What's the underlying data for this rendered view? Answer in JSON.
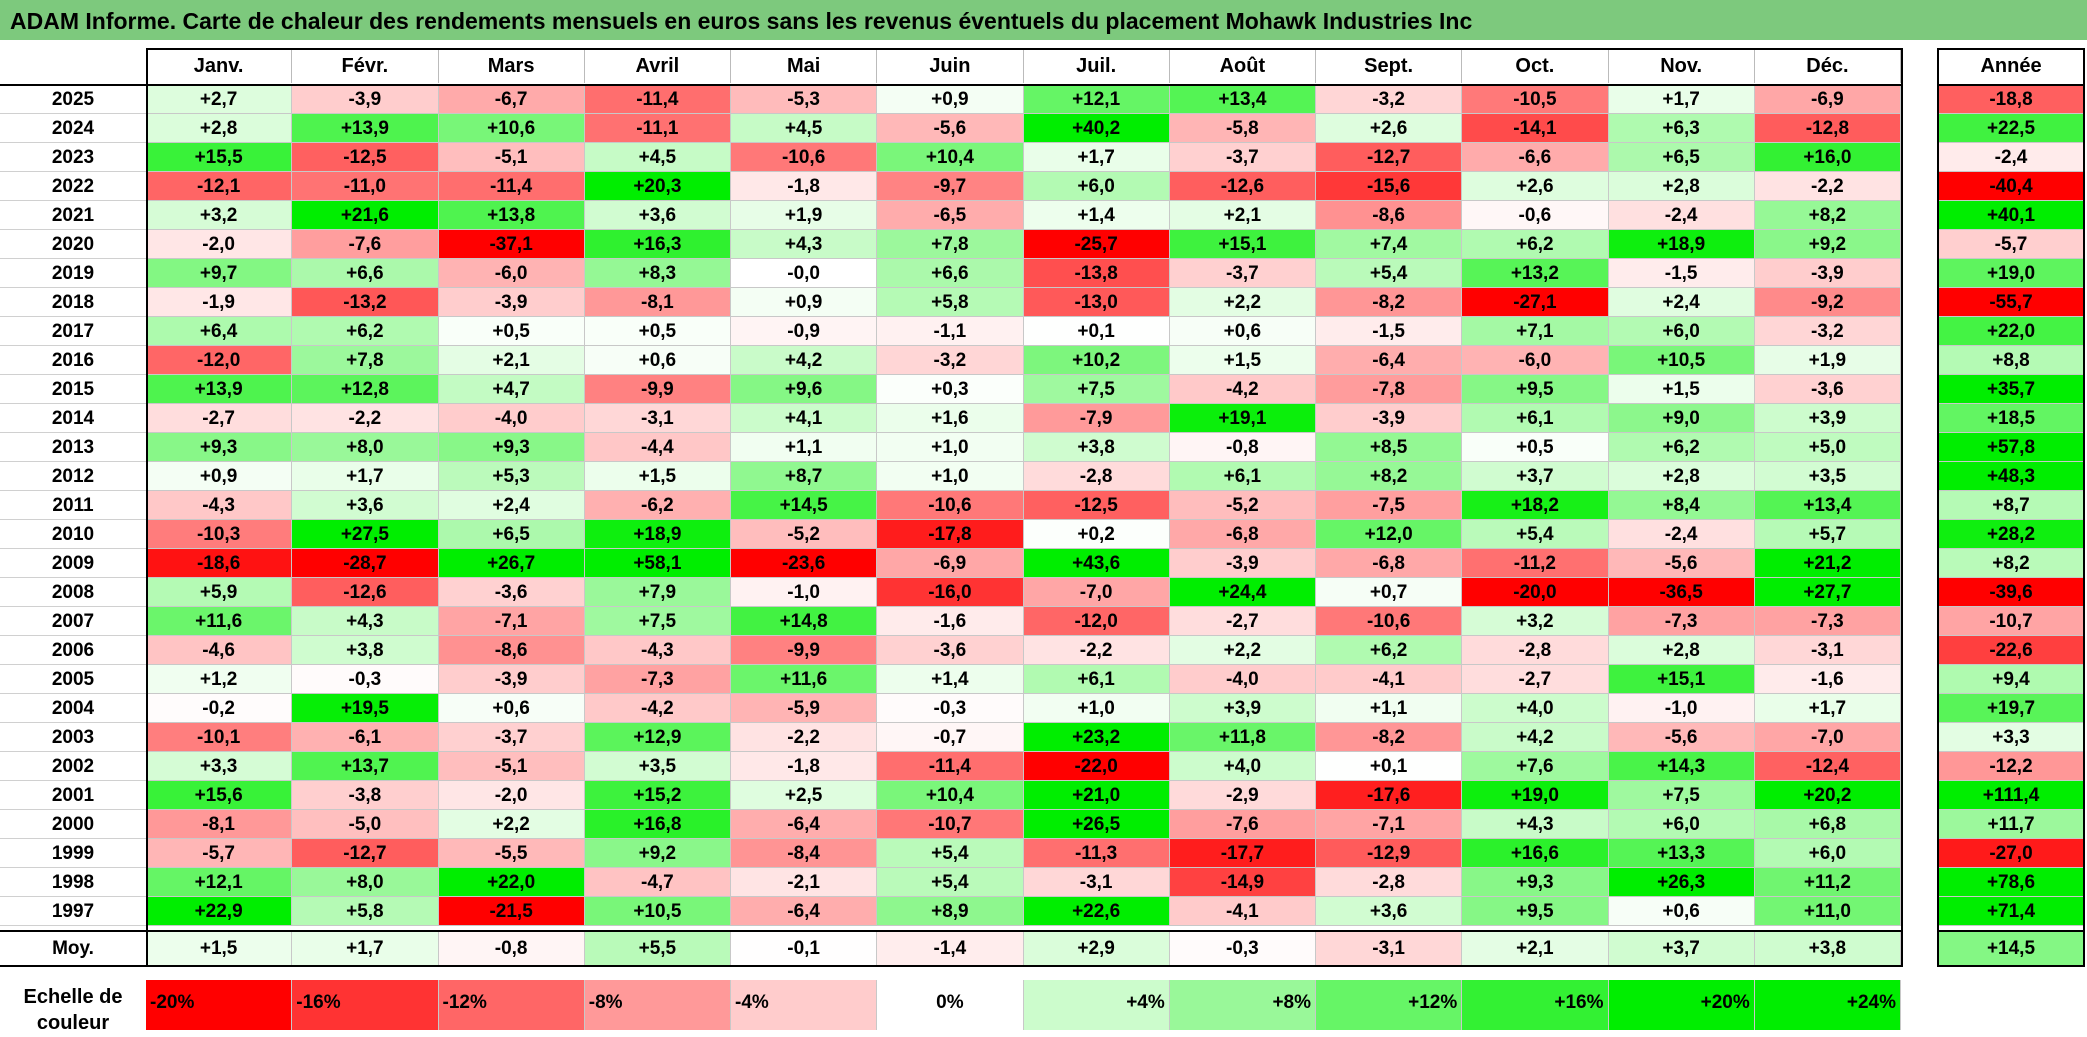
{
  "title": "ADAM Informe. Carte de chaleur des rendements mensuels en euros sans les revenus éventuels du placement Mohawk Industries Inc",
  "chart_data": {
    "type": "heatmap",
    "title": "ADAM Informe. Carte de chaleur des rendements mensuels en euros sans les revenus éventuels du placement Mohawk Industries Inc",
    "columns": [
      "Janv.",
      "Févr.",
      "Mars",
      "Avril",
      "Mai",
      "Juin",
      "Juil.",
      "Août",
      "Sept.",
      "Oct.",
      "Nov.",
      "Déc."
    ],
    "year_header": "Année",
    "rows": [
      {
        "year": "2025",
        "values": [
          "+2,7",
          "-3,9",
          "-6,7",
          "-11,4",
          "-5,3",
          "+0,9",
          "+12,1",
          "+13,4",
          "-3,2",
          "-10,5",
          "+1,7",
          "-6,9"
        ],
        "annual": "-18,8"
      },
      {
        "year": "2024",
        "values": [
          "+2,8",
          "+13,9",
          "+10,6",
          "-11,1",
          "+4,5",
          "-5,6",
          "+40,2",
          "-5,8",
          "+2,6",
          "-14,1",
          "+6,3",
          "-12,8"
        ],
        "annual": "+22,5"
      },
      {
        "year": "2023",
        "values": [
          "+15,5",
          "-12,5",
          "-5,1",
          "+4,5",
          "-10,6",
          "+10,4",
          "+1,7",
          "-3,7",
          "-12,7",
          "-6,6",
          "+6,5",
          "+16,0"
        ],
        "annual": "-2,4"
      },
      {
        "year": "2022",
        "values": [
          "-12,1",
          "-11,0",
          "-11,4",
          "+20,3",
          "-1,8",
          "-9,7",
          "+6,0",
          "-12,6",
          "-15,6",
          "+2,6",
          "+2,8",
          "-2,2"
        ],
        "annual": "-40,4"
      },
      {
        "year": "2021",
        "values": [
          "+3,2",
          "+21,6",
          "+13,8",
          "+3,6",
          "+1,9",
          "-6,5",
          "+1,4",
          "+2,1",
          "-8,6",
          "-0,6",
          "-2,4",
          "+8,2"
        ],
        "annual": "+40,1"
      },
      {
        "year": "2020",
        "values": [
          "-2,0",
          "-7,6",
          "-37,1",
          "+16,3",
          "+4,3",
          "+7,8",
          "-25,7",
          "+15,1",
          "+7,4",
          "+6,2",
          "+18,9",
          "+9,2"
        ],
        "annual": "-5,7"
      },
      {
        "year": "2019",
        "values": [
          "+9,7",
          "+6,6",
          "-6,0",
          "+8,3",
          "-0,0",
          "+6,6",
          "-13,8",
          "-3,7",
          "+5,4",
          "+13,2",
          "-1,5",
          "-3,9"
        ],
        "annual": "+19,0"
      },
      {
        "year": "2018",
        "values": [
          "-1,9",
          "-13,2",
          "-3,9",
          "-8,1",
          "+0,9",
          "+5,8",
          "-13,0",
          "+2,2",
          "-8,2",
          "-27,1",
          "+2,4",
          "-9,2"
        ],
        "annual": "-55,7"
      },
      {
        "year": "2017",
        "values": [
          "+6,4",
          "+6,2",
          "+0,5",
          "+0,5",
          "-0,9",
          "-1,1",
          "+0,1",
          "+0,6",
          "-1,5",
          "+7,1",
          "+6,0",
          "-3,2"
        ],
        "annual": "+22,0"
      },
      {
        "year": "2016",
        "values": [
          "-12,0",
          "+7,8",
          "+2,1",
          "+0,6",
          "+4,2",
          "-3,2",
          "+10,2",
          "+1,5",
          "-6,4",
          "-6,0",
          "+10,5",
          "+1,9"
        ],
        "annual": "+8,8"
      },
      {
        "year": "2015",
        "values": [
          "+13,9",
          "+12,8",
          "+4,7",
          "-9,9",
          "+9,6",
          "+0,3",
          "+7,5",
          "-4,2",
          "-7,8",
          "+9,5",
          "+1,5",
          "-3,6"
        ],
        "annual": "+35,7"
      },
      {
        "year": "2014",
        "values": [
          "-2,7",
          "-2,2",
          "-4,0",
          "-3,1",
          "+4,1",
          "+1,6",
          "-7,9",
          "+19,1",
          "-3,9",
          "+6,1",
          "+9,0",
          "+3,9"
        ],
        "annual": "+18,5"
      },
      {
        "year": "2013",
        "values": [
          "+9,3",
          "+8,0",
          "+9,3",
          "-4,4",
          "+1,1",
          "+1,0",
          "+3,8",
          "-0,8",
          "+8,5",
          "+0,5",
          "+6,2",
          "+5,0"
        ],
        "annual": "+57,8"
      },
      {
        "year": "2012",
        "values": [
          "+0,9",
          "+1,7",
          "+5,3",
          "+1,5",
          "+8,7",
          "+1,0",
          "-2,8",
          "+6,1",
          "+8,2",
          "+3,7",
          "+2,8",
          "+3,5"
        ],
        "annual": "+48,3"
      },
      {
        "year": "2011",
        "values": [
          "-4,3",
          "+3,6",
          "+2,4",
          "-6,2",
          "+14,5",
          "-10,6",
          "-12,5",
          "-5,2",
          "-7,5",
          "+18,2",
          "+8,4",
          "+13,4"
        ],
        "annual": "+8,7"
      },
      {
        "year": "2010",
        "values": [
          "-10,3",
          "+27,5",
          "+6,5",
          "+18,9",
          "-5,2",
          "-17,8",
          "+0,2",
          "-6,8",
          "+12,0",
          "+5,4",
          "-2,4",
          "+5,7"
        ],
        "annual": "+28,2"
      },
      {
        "year": "2009",
        "values": [
          "-18,6",
          "-28,7",
          "+26,7",
          "+58,1",
          "-23,6",
          "-6,9",
          "+43,6",
          "-3,9",
          "-6,8",
          "-11,2",
          "-5,6",
          "+21,2"
        ],
        "annual": "+8,2"
      },
      {
        "year": "2008",
        "values": [
          "+5,9",
          "-12,6",
          "-3,6",
          "+7,9",
          "-1,0",
          "-16,0",
          "-7,0",
          "+24,4",
          "+0,7",
          "-20,0",
          "-36,5",
          "+27,7"
        ],
        "annual": "-39,6"
      },
      {
        "year": "2007",
        "values": [
          "+11,6",
          "+4,3",
          "-7,1",
          "+7,5",
          "+14,8",
          "-1,6",
          "-12,0",
          "-2,7",
          "-10,6",
          "+3,2",
          "-7,3",
          "-7,3"
        ],
        "annual": "-10,7"
      },
      {
        "year": "2006",
        "values": [
          "-4,6",
          "+3,8",
          "-8,6",
          "-4,3",
          "-9,9",
          "-3,6",
          "-2,2",
          "+2,2",
          "+6,2",
          "-2,8",
          "+2,8",
          "-3,1"
        ],
        "annual": "-22,6"
      },
      {
        "year": "2005",
        "values": [
          "+1,2",
          "-0,3",
          "-3,9",
          "-7,3",
          "+11,6",
          "+1,4",
          "+6,1",
          "-4,0",
          "-4,1",
          "-2,7",
          "+15,1",
          "-1,6"
        ],
        "annual": "+9,4"
      },
      {
        "year": "2004",
        "values": [
          "-0,2",
          "+19,5",
          "+0,6",
          "-4,2",
          "-5,9",
          "-0,3",
          "+1,0",
          "+3,9",
          "+1,1",
          "+4,0",
          "-1,0",
          "+1,7"
        ],
        "annual": "+19,7"
      },
      {
        "year": "2003",
        "values": [
          "-10,1",
          "-6,1",
          "-3,7",
          "+12,9",
          "-2,2",
          "-0,7",
          "+23,2",
          "+11,8",
          "-8,2",
          "+4,2",
          "-5,6",
          "-7,0"
        ],
        "annual": "+3,3"
      },
      {
        "year": "2002",
        "values": [
          "+3,3",
          "+13,7",
          "-5,1",
          "+3,5",
          "-1,8",
          "-11,4",
          "-22,0",
          "+4,0",
          "+0,1",
          "+7,6",
          "+14,3",
          "-12,4"
        ],
        "annual": "-12,2"
      },
      {
        "year": "2001",
        "values": [
          "+15,6",
          "-3,8",
          "-2,0",
          "+15,2",
          "+2,5",
          "+10,4",
          "+21,0",
          "-2,9",
          "-17,6",
          "+19,0",
          "+7,5",
          "+20,2"
        ],
        "annual": "+111,4"
      },
      {
        "year": "2000",
        "values": [
          "-8,1",
          "-5,0",
          "+2,2",
          "+16,8",
          "-6,4",
          "-10,7",
          "+26,5",
          "-7,6",
          "-7,1",
          "+4,3",
          "+6,0",
          "+6,8"
        ],
        "annual": "+11,7"
      },
      {
        "year": "1999",
        "values": [
          "-5,7",
          "-12,7",
          "-5,5",
          "+9,2",
          "-8,4",
          "+5,4",
          "-11,3",
          "-17,7",
          "-12,9",
          "+16,6",
          "+13,3",
          "+6,0"
        ],
        "annual": "-27,0"
      },
      {
        "year": "1998",
        "values": [
          "+12,1",
          "+8,0",
          "+22,0",
          "-4,7",
          "-2,1",
          "+5,4",
          "-3,1",
          "-14,9",
          "-2,8",
          "+9,3",
          "+26,3",
          "+11,2"
        ],
        "annual": "+78,6"
      },
      {
        "year": "1997",
        "values": [
          "+22,9",
          "+5,8",
          "-21,5",
          "+10,5",
          "-6,4",
          "+8,9",
          "+22,6",
          "-4,1",
          "+3,6",
          "+9,5",
          "+0,6",
          "+11,0"
        ],
        "annual": "+71,4"
      }
    ],
    "average": {
      "label": "Moy.",
      "values": [
        "+1,5",
        "+1,7",
        "-0,8",
        "+5,5",
        "-0,1",
        "-1,4",
        "+2,9",
        "-0,3",
        "-3,1",
        "+2,1",
        "+3,7",
        "+3,8"
      ],
      "annual": "+14,5"
    },
    "scale": {
      "label": "Echelle de couleur",
      "items": [
        {
          "label": "-20%",
          "value": -20
        },
        {
          "label": "-16%",
          "value": -16
        },
        {
          "label": "-12%",
          "value": -12
        },
        {
          "label": "-8%",
          "value": -8
        },
        {
          "label": "-4%",
          "value": -4
        },
        {
          "label": "0%",
          "value": 0
        },
        {
          "label": "+4%",
          "value": 4
        },
        {
          "label": "+8%",
          "value": 8
        },
        {
          "label": "+12%",
          "value": 12
        },
        {
          "label": "+16%",
          "value": 16
        },
        {
          "label": "+20%",
          "value": 20
        },
        {
          "label": "+24%",
          "value": 24
        }
      ]
    },
    "colors": {
      "negative": "#ff0000",
      "neutral": "#ffffff",
      "positive": "#00ee00",
      "title_bg": "#7dc97d"
    }
  }
}
